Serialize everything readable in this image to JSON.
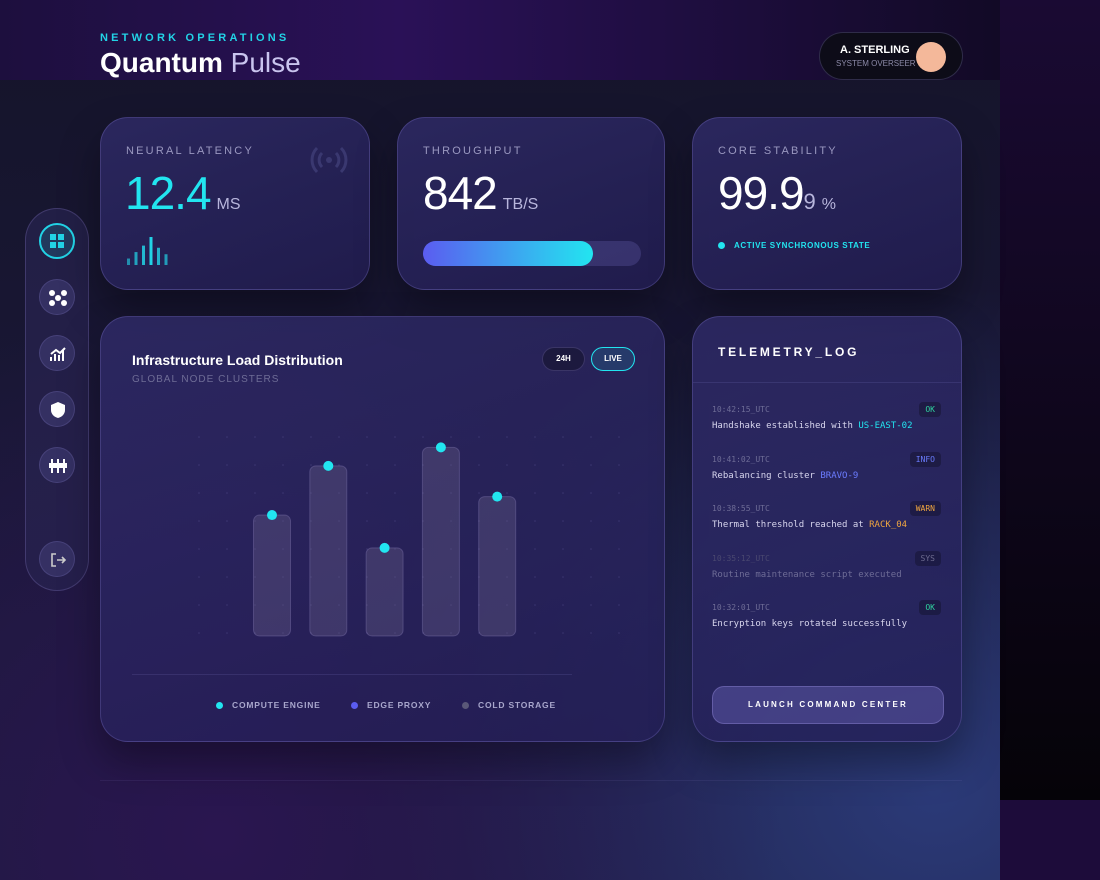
{
  "header": {
    "eyebrow": "NETWORK OPERATIONS",
    "title_bold": "Quantum",
    "title_light": "Pulse"
  },
  "user": {
    "name": "A. STERLING",
    "role": "SYSTEM OVERSEER"
  },
  "metrics": [
    {
      "label": "NEURAL LATENCY",
      "value": "12.4",
      "unit": "MS",
      "sparkline": {
        "values": [
          6,
          12,
          18,
          26,
          16,
          10
        ],
        "ylim": [
          0,
          26
        ],
        "color": "#22d3e6"
      }
    },
    {
      "label": "THROUGHPUT",
      "value": "842",
      "unit": "TB/S",
      "progress": {
        "value": 78,
        "max": 100
      }
    },
    {
      "label": "CORE STABILITY",
      "value": "99.9",
      "value_small": "9",
      "unit": "%",
      "status": "ACTIVE SYNCHRONOUS STATE"
    }
  ],
  "chart_data": {
    "type": "bar",
    "title": "Infrastructure Load Distribution",
    "subtitle": "GLOBAL NODE CLUSTERS",
    "filters": [
      "24H",
      "LIVE"
    ],
    "values": [
      59,
      83,
      43,
      92,
      68
    ],
    "ylim": [
      0,
      100
    ],
    "color": "#22e5f0",
    "legend": [
      {
        "name": "COMPUTE ENGINE",
        "color": "#22e5f0"
      },
      {
        "name": "EDGE PROXY",
        "color": "#5b5cf0"
      },
      {
        "name": "COLD STORAGE",
        "color": "#5a5878"
      }
    ]
  },
  "telemetry": {
    "title": "TELEMETRY_LOG",
    "entries": [
      {
        "time": "10:42:15_UTC",
        "level": "OK",
        "level_color": "#2fd3a0",
        "text": "Handshake established with",
        "highlight": "US-EAST-02",
        "highlight_color": "#22e5f0"
      },
      {
        "time": "10:41:02_UTC",
        "level": "INFO",
        "level_color": "#6b7cff",
        "text": "Rebalancing cluster",
        "highlight": "BRAVO-9",
        "highlight_color": "#6b7cff"
      },
      {
        "time": "10:38:55_UTC",
        "level": "WARN",
        "level_color": "#f0a640",
        "text": "Thermal threshold reached at",
        "highlight": "RACK_04",
        "highlight_color": "#f0a640"
      },
      {
        "time": "10:35:12_UTC",
        "level": "SYS",
        "level_color": "#6e6c90",
        "text": "Routine maintenance script executed"
      },
      {
        "time": "10:32:01_UTC",
        "level": "OK",
        "level_color": "#2fd3a0",
        "text": "Encryption keys rotated successfully"
      }
    ],
    "button": "LAUNCH COMMAND CENTER"
  }
}
